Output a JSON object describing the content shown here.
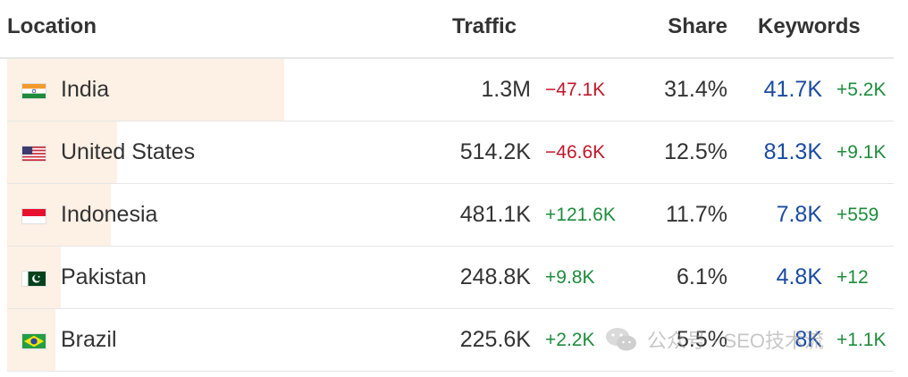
{
  "headers": {
    "location": "Location",
    "traffic": "Traffic",
    "share": "Share",
    "keywords": "Keywords"
  },
  "rows": [
    {
      "country": "India",
      "flag": "india-flag-icon",
      "traffic": "1.3M",
      "traffic_delta": "−47.1K",
      "traffic_delta_dir": "neg",
      "share": "31.4%",
      "share_value": 31.4,
      "keywords": "41.7K",
      "keywords_delta": "+5.2K"
    },
    {
      "country": "United States",
      "flag": "us-flag-icon",
      "traffic": "514.2K",
      "traffic_delta": "−46.6K",
      "traffic_delta_dir": "neg",
      "share": "12.5%",
      "share_value": 12.5,
      "keywords": "81.3K",
      "keywords_delta": "+9.1K"
    },
    {
      "country": "Indonesia",
      "flag": "indonesia-flag-icon",
      "traffic": "481.1K",
      "traffic_delta": "+121.6K",
      "traffic_delta_dir": "pos",
      "share": "11.7%",
      "share_value": 11.7,
      "keywords": "7.8K",
      "keywords_delta": "+559"
    },
    {
      "country": "Pakistan",
      "flag": "pakistan-flag-icon",
      "traffic": "248.8K",
      "traffic_delta": "+9.8K",
      "traffic_delta_dir": "pos",
      "share": "6.1%",
      "share_value": 6.1,
      "keywords": "4.8K",
      "keywords_delta": "+12"
    },
    {
      "country": "Brazil",
      "flag": "brazil-flag-icon",
      "traffic": "225.6K",
      "traffic_delta": "+2.2K",
      "traffic_delta_dir": "pos",
      "share": "5.5%",
      "share_value": 5.5,
      "keywords": "8K",
      "keywords_delta": "+1.1K"
    }
  ],
  "watermark": {
    "icon": "wechat-icon",
    "text": "公众号 · SEO技术流"
  },
  "colors": {
    "negative": "#c3162a",
    "positive": "#1e8c3d",
    "keywords": "#1a4ba0",
    "share_bar": "#fdf0e4"
  }
}
